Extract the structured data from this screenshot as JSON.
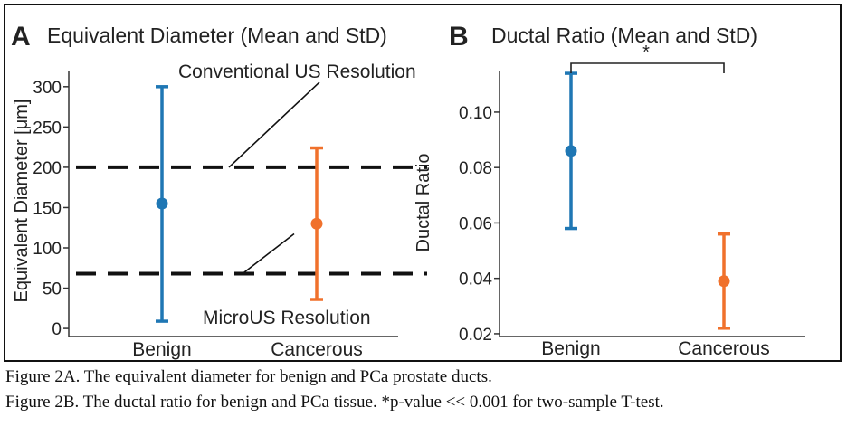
{
  "captions": [
    "Figure 2A. The equivalent diameter for benign and PCa prostate ducts.",
    "Figure 2B. The ductal ratio for benign and PCa tissue. *p-value << 0.001 for two-sample T-test."
  ],
  "chart_data": [
    {
      "panel_letter": "A",
      "type": "scatter",
      "title": "Equivalent Diameter (Mean and StD)",
      "xlabel": "",
      "ylabel": "Equivalent Diameter [μm]",
      "categories": [
        "Benign",
        "Cancerous"
      ],
      "series": [
        {
          "category": "Benign",
          "mean": 155,
          "low": 9,
          "high": 300,
          "color": "#1f77b4"
        },
        {
          "category": "Cancerous",
          "mean": 130,
          "low": 36,
          "high": 224,
          "color": "#f0712c"
        }
      ],
      "reference_lines": [
        {
          "label": "Conventional US Resolution",
          "value": 200
        },
        {
          "label": "MicroUS Resolution",
          "value": 68
        }
      ],
      "ylim": [
        -10,
        320
      ],
      "yticks": [
        0,
        50,
        100,
        150,
        200,
        250,
        300
      ],
      "grid": false
    },
    {
      "panel_letter": "B",
      "type": "scatter",
      "title": "Ductal Ratio (Mean and StD)",
      "xlabel": "",
      "ylabel": "Ductal Ratio",
      "categories": [
        "Benign",
        "Cancerous"
      ],
      "series": [
        {
          "category": "Benign",
          "mean": 0.086,
          "low": 0.058,
          "high": 0.114,
          "color": "#1f77b4"
        },
        {
          "category": "Cancerous",
          "mean": 0.039,
          "low": 0.022,
          "high": 0.056,
          "color": "#f0712c"
        }
      ],
      "significance": {
        "label": "*",
        "between": [
          "Benign",
          "Cancerous"
        ]
      },
      "ylim": [
        0.019,
        0.115
      ],
      "yticks": [
        "0.02",
        "0.04",
        "0.06",
        "0.08",
        "0.10"
      ],
      "grid": false
    }
  ]
}
